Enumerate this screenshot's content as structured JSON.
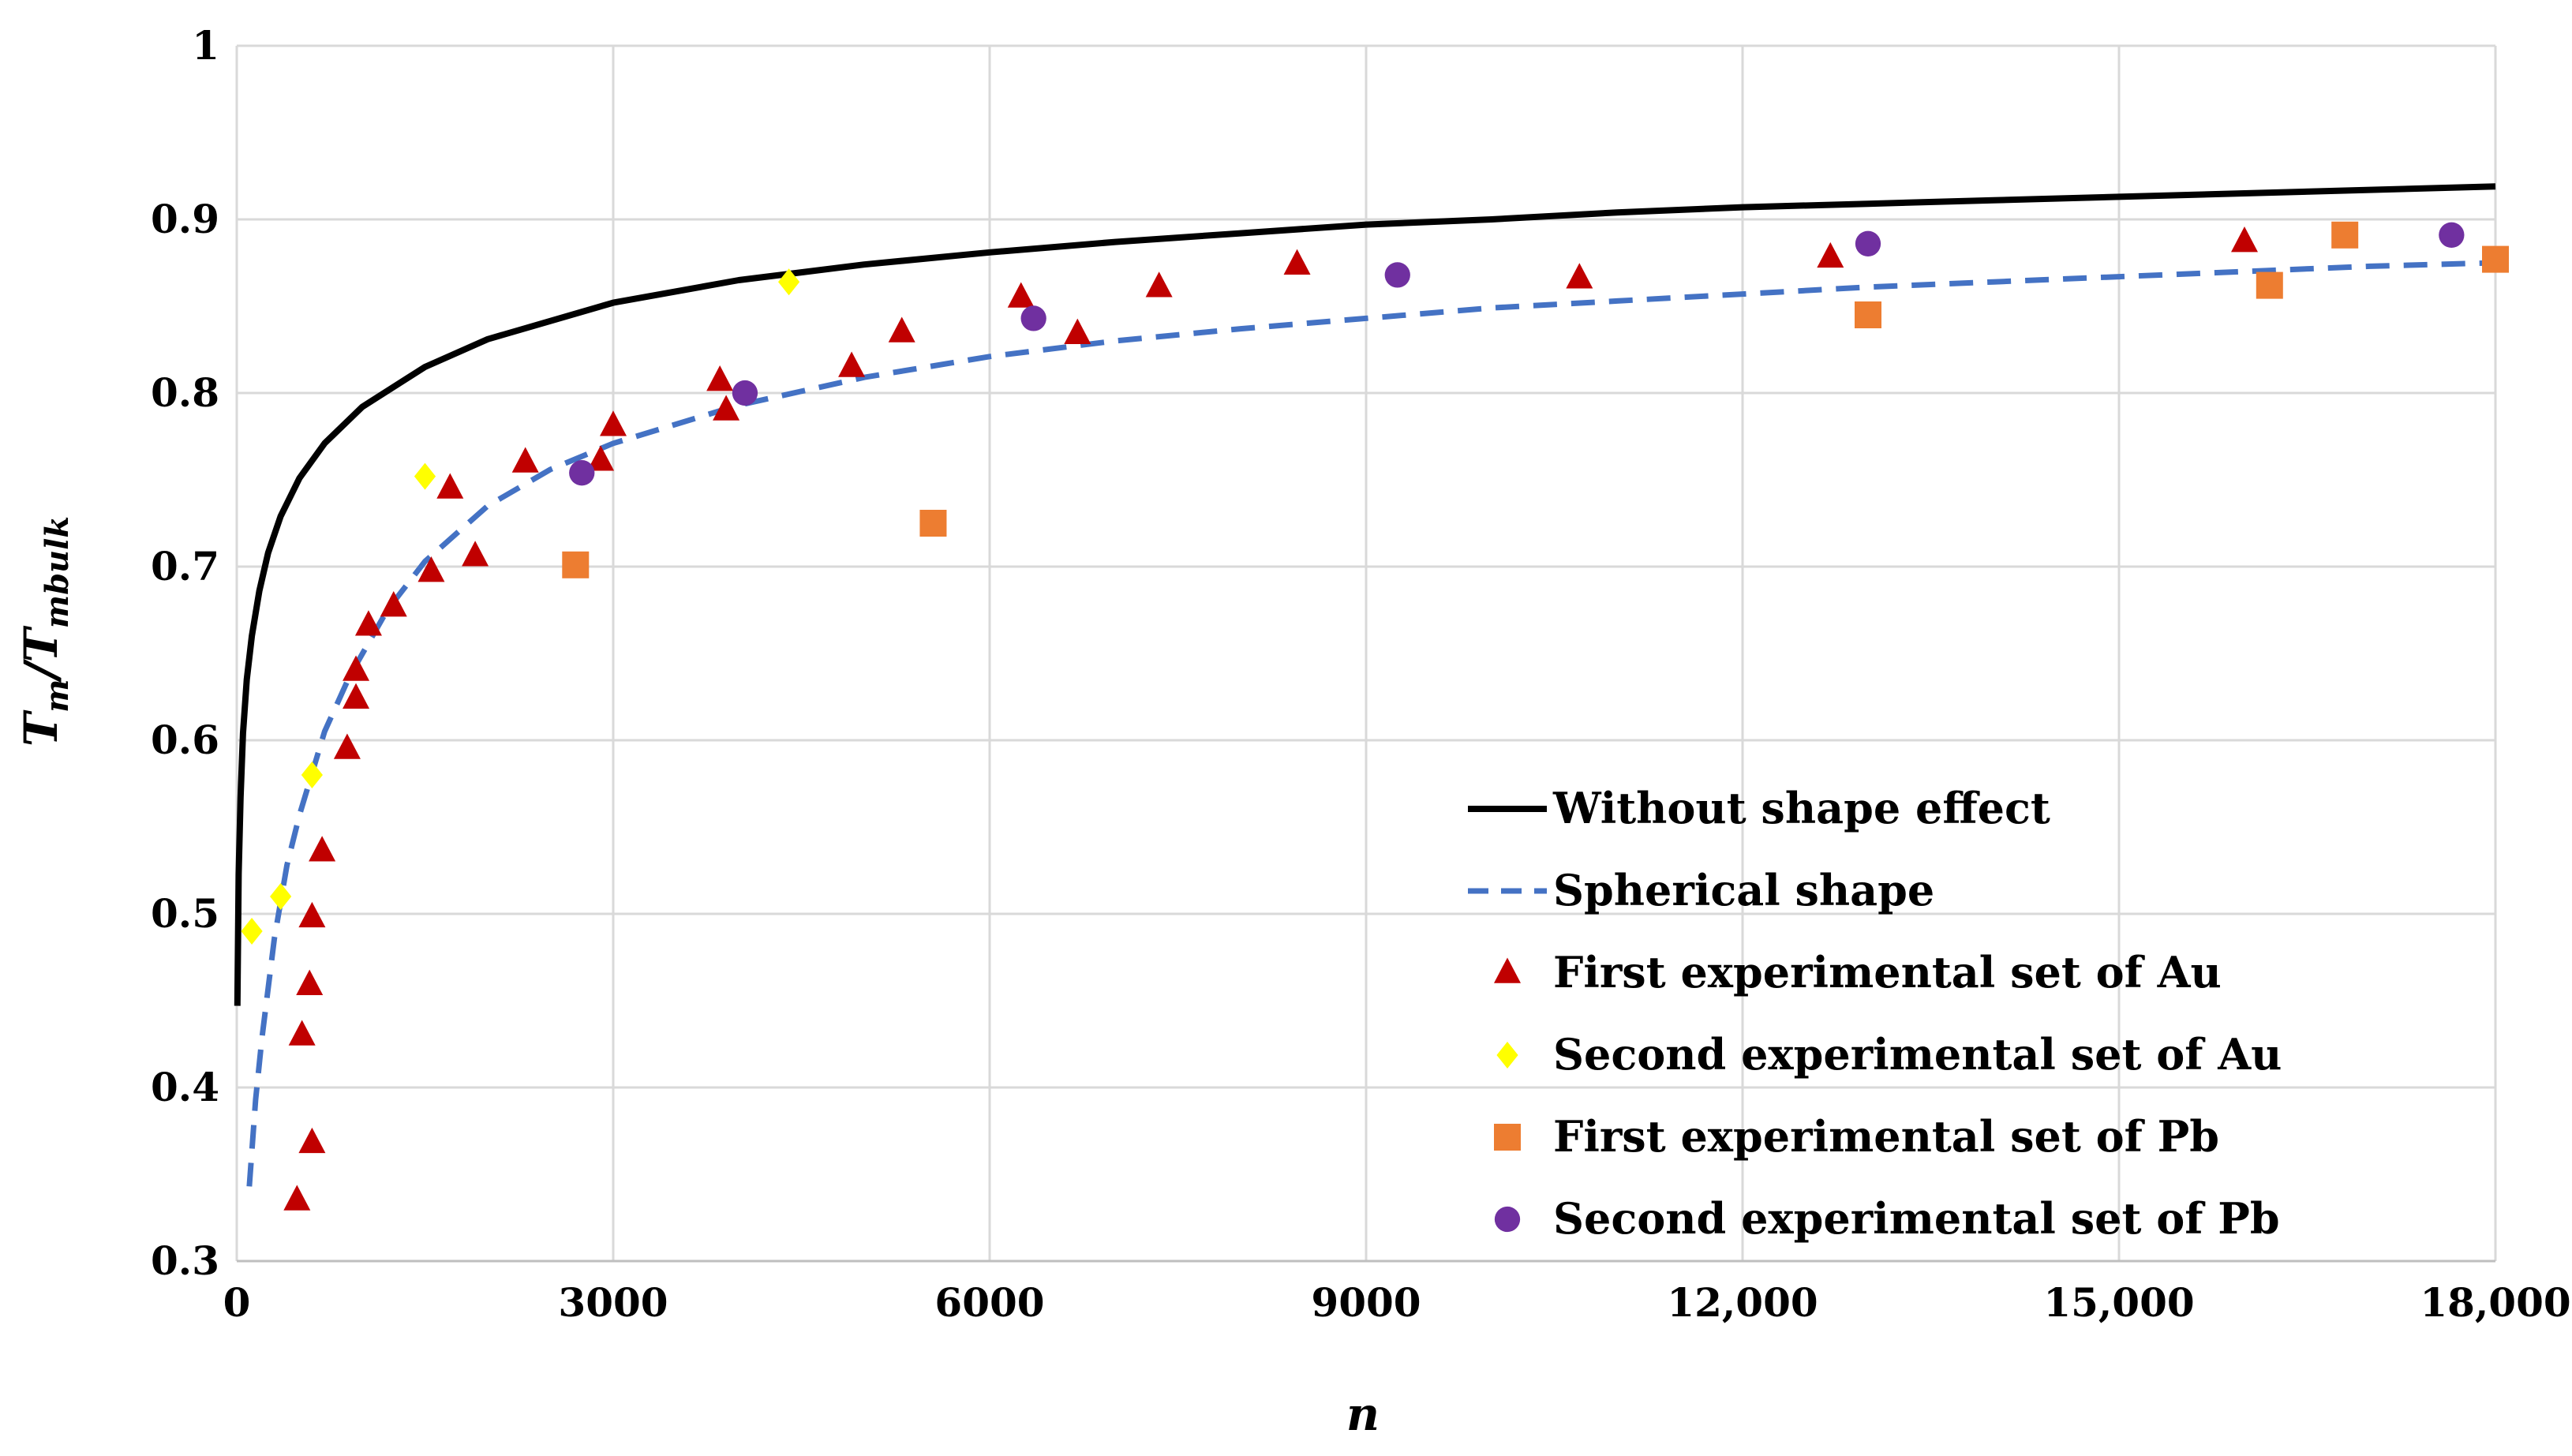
{
  "chart_data": {
    "type": "scatter",
    "title": "",
    "xlabel": "n",
    "ylabel": {
      "main": "T",
      "sub1": "m",
      "slash": "/T",
      "sub2": "mbulk"
    },
    "xlim": [
      0,
      18000
    ],
    "ylim": [
      0.3,
      1.0
    ],
    "x_ticks": [
      {
        "value": 0,
        "label": "0"
      },
      {
        "value": 3000,
        "label": "3000"
      },
      {
        "value": 6000,
        "label": "6000"
      },
      {
        "value": 9000,
        "label": "9000"
      },
      {
        "value": 12000,
        "label": "12,000"
      },
      {
        "value": 15000,
        "label": "15,000"
      },
      {
        "value": 18000,
        "label": "18,000"
      }
    ],
    "y_ticks": [
      {
        "value": 0.3,
        "label": "0.3"
      },
      {
        "value": 0.4,
        "label": "0.4"
      },
      {
        "value": 0.5,
        "label": "0.5"
      },
      {
        "value": 0.6,
        "label": "0.6"
      },
      {
        "value": 0.7,
        "label": "0.7"
      },
      {
        "value": 0.8,
        "label": "0.8"
      },
      {
        "value": 0.9,
        "label": "0.9"
      },
      {
        "value": 1.0,
        "label": "1"
      }
    ],
    "grid": true,
    "legend_position": "bottom-right",
    "series": [
      {
        "name": "Without shape effect",
        "kind": "line",
        "style": "solid",
        "color": "#000000",
        "x": [
          5,
          15,
          30,
          50,
          80,
          120,
          180,
          250,
          350,
          500,
          700,
          1000,
          1500,
          2000,
          3000,
          4000,
          5000,
          6000,
          7000,
          8000,
          9000,
          10000,
          11000,
          12000,
          13000,
          14000,
          15000,
          16000,
          17000,
          18000
        ],
        "y": [
          0.447,
          0.523,
          0.567,
          0.604,
          0.635,
          0.66,
          0.686,
          0.708,
          0.729,
          0.751,
          0.771,
          0.792,
          0.815,
          0.831,
          0.852,
          0.865,
          0.874,
          0.881,
          0.887,
          0.892,
          0.897,
          0.9,
          0.904,
          0.907,
          0.909,
          0.911,
          0.913,
          0.915,
          0.917,
          0.919
        ]
      },
      {
        "name": "Spherical shape",
        "kind": "line",
        "style": "dashed",
        "color": "#4472C4",
        "x": [
          100,
          150,
          200,
          300,
          400,
          500,
          700,
          900,
          1200,
          1500,
          2000,
          2500,
          3000,
          4000,
          5000,
          6000,
          7000,
          8000,
          9000,
          10000,
          11000,
          12000,
          13000,
          14000,
          15000,
          16000,
          17000,
          18000
        ],
        "y": [
          0.343,
          0.393,
          0.428,
          0.486,
          0.528,
          0.557,
          0.605,
          0.637,
          0.675,
          0.703,
          0.735,
          0.756,
          0.771,
          0.793,
          0.809,
          0.821,
          0.83,
          0.837,
          0.843,
          0.849,
          0.853,
          0.857,
          0.861,
          0.864,
          0.867,
          0.87,
          0.873,
          0.875
        ]
      },
      {
        "name": "First experimental set of Au",
        "kind": "marker",
        "marker": "triangle",
        "color": "#C00000",
        "x": [
          480,
          600,
          520,
          580,
          600,
          680,
          880,
          950,
          950,
          1050,
          1250,
          1550,
          1700,
          1900,
          2300,
          2900,
          3000,
          3850,
          3900,
          4900,
          5300,
          6250,
          6700,
          7350,
          8450,
          10700,
          12700,
          16000
        ],
        "y": [
          0.335,
          0.368,
          0.43,
          0.459,
          0.498,
          0.536,
          0.595,
          0.624,
          0.64,
          0.666,
          0.677,
          0.697,
          0.745,
          0.706,
          0.76,
          0.761,
          0.781,
          0.807,
          0.79,
          0.815,
          0.835,
          0.855,
          0.834,
          0.861,
          0.874,
          0.866,
          0.878,
          0.887
        ]
      },
      {
        "name": "Second experimental set of Au",
        "kind": "marker",
        "marker": "diamond",
        "color": "#FFFF00",
        "x": [
          120,
          350,
          600,
          1500,
          4400
        ],
        "y": [
          0.49,
          0.51,
          0.58,
          0.752,
          0.864
        ]
      },
      {
        "name": "First experimental set of Pb",
        "kind": "marker",
        "marker": "square",
        "color": "#ED7D31",
        "x": [
          2700,
          5550,
          13000,
          16200,
          16800,
          18000
        ],
        "y": [
          0.701,
          0.725,
          0.845,
          0.862,
          0.891,
          0.877
        ]
      },
      {
        "name": "Second experimental set of Pb",
        "kind": "marker",
        "marker": "circle",
        "color": "#7030A0",
        "x": [
          2750,
          4050,
          6350,
          9250,
          13000,
          17650
        ],
        "y": [
          0.754,
          0.8,
          0.843,
          0.868,
          0.886,
          0.891
        ]
      }
    ]
  }
}
